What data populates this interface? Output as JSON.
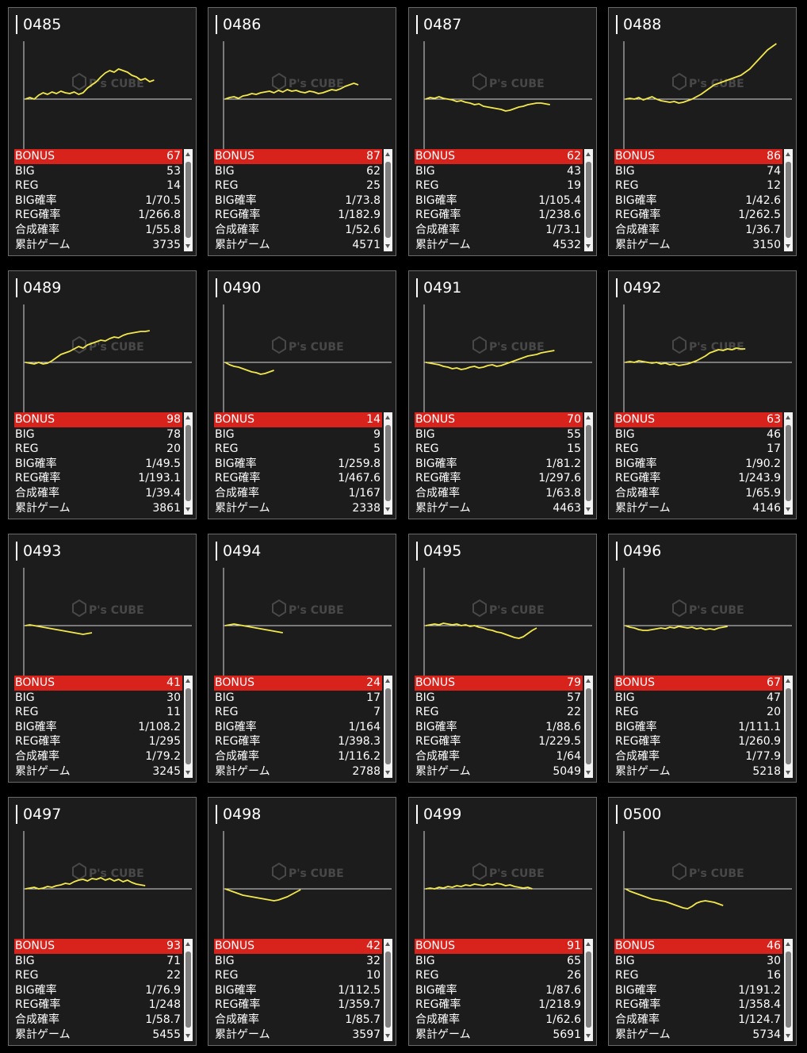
{
  "labels": [
    "BONUS",
    "BIG",
    "REG",
    "BIG確率",
    "REG確率",
    "合成確率",
    "累計ゲーム"
  ],
  "watermark": {
    "brand": "P's CUBE"
  },
  "colors": {
    "line": "#f3e84b",
    "bonus_bar": "#d8231d",
    "card_bg": "#1c1c1c"
  },
  "machines": [
    {
      "id": "0485",
      "values": [
        "67",
        "53",
        "14",
        "1/70.5",
        "1/266.8",
        "1/55.8",
        "3735"
      ],
      "trend": [
        0,
        2,
        0,
        5,
        8,
        6,
        9,
        7,
        10,
        8,
        7,
        9,
        6,
        8,
        14,
        18,
        22,
        28,
        33,
        36,
        34,
        38,
        36,
        34,
        30,
        28,
        24,
        26,
        22,
        24
      ]
    },
    {
      "id": "0486",
      "values": [
        "87",
        "62",
        "25",
        "1/73.8",
        "1/182.9",
        "1/52.6",
        "4571"
      ],
      "trend": [
        0,
        2,
        3,
        1,
        4,
        5,
        7,
        6,
        8,
        9,
        10,
        8,
        11,
        9,
        12,
        10,
        11,
        9,
        8,
        10,
        9,
        7,
        8,
        10,
        12,
        11,
        13,
        16,
        18,
        20,
        18
      ]
    },
    {
      "id": "0487",
      "values": [
        "62",
        "43",
        "19",
        "1/105.4",
        "1/238.6",
        "1/73.1",
        "4532"
      ],
      "trend": [
        0,
        2,
        1,
        3,
        1,
        0,
        -1,
        -3,
        -2,
        -4,
        -5,
        -7,
        -6,
        -9,
        -10,
        -11,
        -12,
        -13,
        -15,
        -14,
        -12,
        -10,
        -9,
        -7,
        -6,
        -5,
        -5,
        -6,
        -7
      ]
    },
    {
      "id": "0488",
      "values": [
        "86",
        "74",
        "12",
        "1/42.6",
        "1/262.5",
        "1/36.7",
        "3150"
      ],
      "trend": [
        0,
        1,
        0,
        2,
        -1,
        1,
        3,
        0,
        -2,
        -3,
        -4,
        -3,
        -5,
        -4,
        -2,
        0,
        3,
        6,
        10,
        14,
        18,
        20,
        22,
        24,
        26,
        28,
        30,
        34,
        38,
        44,
        50,
        56,
        62,
        66,
        70
      ]
    },
    {
      "id": "0489",
      "values": [
        "98",
        "78",
        "20",
        "1/49.5",
        "1/193.1",
        "1/39.4",
        "3861"
      ],
      "trend": [
        0,
        -1,
        -2,
        0,
        -2,
        -1,
        2,
        6,
        10,
        12,
        14,
        17,
        20,
        18,
        22,
        24,
        26,
        28,
        27,
        30,
        32,
        31,
        34,
        36,
        37,
        38,
        39,
        39,
        40
      ]
    },
    {
      "id": "0490",
      "values": [
        "14",
        "9",
        "5",
        "1/259.8",
        "1/467.6",
        "1/167",
        "2338"
      ],
      "trend": [
        0,
        -3,
        -5,
        -6,
        -8,
        -10,
        -12,
        -13,
        -15,
        -14,
        -12,
        -10
      ]
    },
    {
      "id": "0491",
      "values": [
        "70",
        "55",
        "15",
        "1/81.2",
        "1/297.6",
        "1/63.8",
        "4463"
      ],
      "trend": [
        0,
        -1,
        -2,
        -3,
        -5,
        -6,
        -8,
        -7,
        -9,
        -8,
        -6,
        -5,
        -7,
        -6,
        -4,
        -3,
        -5,
        -4,
        -2,
        0,
        2,
        4,
        6,
        8,
        9,
        10,
        12,
        13,
        14,
        15
      ]
    },
    {
      "id": "0492",
      "values": [
        "63",
        "46",
        "17",
        "1/90.2",
        "1/243.9",
        "1/65.9",
        "4146"
      ],
      "trend": [
        0,
        1,
        0,
        2,
        1,
        0,
        -1,
        0,
        -2,
        -1,
        -3,
        -2,
        -4,
        -3,
        -2,
        0,
        2,
        5,
        8,
        12,
        14,
        16,
        15,
        17,
        16,
        18,
        17,
        17
      ]
    },
    {
      "id": "0493",
      "values": [
        "41",
        "30",
        "11",
        "1/108.2",
        "1/295",
        "1/79.2",
        "3245"
      ],
      "trend": [
        0,
        1,
        0,
        -1,
        -2,
        -3,
        -4,
        -5,
        -6,
        -7,
        -8,
        -9,
        -10,
        -11,
        -10,
        -9
      ]
    },
    {
      "id": "0494",
      "values": [
        "24",
        "17",
        "7",
        "1/164",
        "1/398.3",
        "1/116.2",
        "2788"
      ],
      "trend": [
        0,
        1,
        2,
        1,
        0,
        -1,
        -2,
        -3,
        -4,
        -5,
        -6,
        -7,
        -8,
        -9
      ]
    },
    {
      "id": "0495",
      "values": [
        "79",
        "57",
        "22",
        "1/88.6",
        "1/229.5",
        "1/64",
        "5049"
      ],
      "trend": [
        0,
        1,
        2,
        1,
        3,
        2,
        1,
        2,
        0,
        1,
        -1,
        0,
        -2,
        -3,
        -5,
        -6,
        -8,
        -9,
        -11,
        -13,
        -15,
        -16,
        -14,
        -10,
        -6,
        -3
      ]
    },
    {
      "id": "0496",
      "values": [
        "67",
        "47",
        "20",
        "1/111.1",
        "1/260.9",
        "1/77.9",
        "5218"
      ],
      "trend": [
        0,
        -2,
        -3,
        -5,
        -6,
        -6,
        -5,
        -4,
        -3,
        -4,
        -2,
        -3,
        -1,
        -2,
        -3,
        -2,
        -4,
        -3,
        -5,
        -4,
        -5,
        -3,
        -2,
        -1
      ]
    },
    {
      "id": "0497",
      "values": [
        "93",
        "71",
        "22",
        "1/76.9",
        "1/248",
        "1/58.7",
        "5455"
      ],
      "trend": [
        0,
        1,
        2,
        0,
        1,
        3,
        2,
        4,
        5,
        7,
        6,
        9,
        11,
        12,
        10,
        13,
        12,
        14,
        11,
        13,
        10,
        12,
        9,
        11,
        8,
        6,
        5,
        4
      ]
    },
    {
      "id": "0498",
      "values": [
        "42",
        "32",
        "10",
        "1/112.5",
        "1/359.7",
        "1/85.7",
        "3597"
      ],
      "trend": [
        0,
        -2,
        -4,
        -6,
        -8,
        -9,
        -10,
        -11,
        -12,
        -13,
        -14,
        -15,
        -14,
        -12,
        -10,
        -7,
        -4,
        -1
      ]
    },
    {
      "id": "0499",
      "values": [
        "91",
        "65",
        "26",
        "1/87.6",
        "1/218.9",
        "1/62.6",
        "5691"
      ],
      "trend": [
        0,
        1,
        0,
        2,
        1,
        3,
        2,
        4,
        3,
        5,
        4,
        6,
        5,
        4,
        6,
        5,
        7,
        6,
        4,
        5,
        3,
        2,
        1,
        2,
        0
      ]
    },
    {
      "id": "0500",
      "values": [
        "46",
        "30",
        "16",
        "1/191.2",
        "1/358.4",
        "1/124.7",
        "5734"
      ],
      "trend": [
        0,
        -3,
        -5,
        -7,
        -9,
        -11,
        -13,
        -14,
        -15,
        -16,
        -18,
        -20,
        -22,
        -24,
        -25,
        -22,
        -18,
        -16,
        -15,
        -16,
        -17,
        -19,
        -21
      ]
    }
  ]
}
